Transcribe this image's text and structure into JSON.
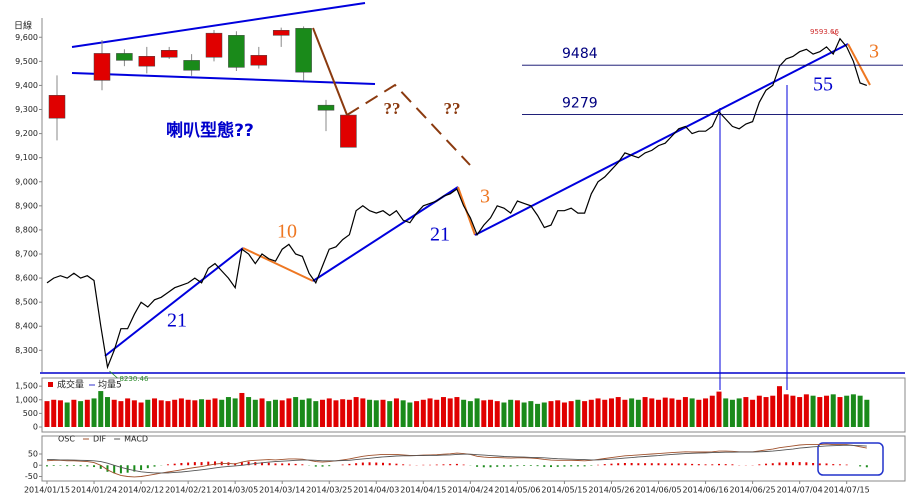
{
  "chart_data": [
    {
      "type": "line",
      "title": "日線",
      "color": "#000000",
      "ylim": [
        8210,
        9680
      ],
      "yticks": [
        {
          "value": 8300,
          "label": "8,300"
        },
        {
          "value": 8400,
          "label": "8,400"
        },
        {
          "value": 8500,
          "label": "8,500"
        },
        {
          "value": 8600,
          "label": "8,600"
        },
        {
          "value": 8700,
          "label": "8,700"
        },
        {
          "value": 8800,
          "label": "8,800"
        },
        {
          "value": 8900,
          "label": "8,900"
        },
        {
          "value": 9000,
          "label": "9,000"
        },
        {
          "value": 9100,
          "label": "9,100"
        },
        {
          "value": 9200,
          "label": "9,200"
        },
        {
          "value": 9300,
          "label": "9,300"
        },
        {
          "value": 9400,
          "label": "9,400"
        },
        {
          "value": 9500,
          "label": "9,500"
        },
        {
          "value": 9600,
          "label": "9,600"
        }
      ],
      "categories": [
        "2014/01/15",
        null,
        null,
        null,
        null,
        null,
        null,
        "2014/01/24",
        null,
        null,
        null,
        null,
        null,
        null,
        "2014/02/12",
        null,
        null,
        null,
        null,
        null,
        null,
        "2014/02/21",
        null,
        null,
        null,
        null,
        null,
        null,
        "2014/03/05",
        null,
        null,
        null,
        null,
        null,
        null,
        "2014/03/14",
        null,
        null,
        null,
        null,
        null,
        null,
        "2014/03/25",
        null,
        null,
        null,
        null,
        null,
        null,
        "2014/04/03",
        null,
        null,
        null,
        null,
        null,
        null,
        "2014/04/15",
        null,
        null,
        null,
        null,
        null,
        null,
        "2014/04/24",
        null,
        null,
        null,
        null,
        null,
        null,
        "2014/05/06",
        null,
        null,
        null,
        null,
        null,
        null,
        "2014/05/15",
        null,
        null,
        null,
        null,
        null,
        null,
        "2014/05/26",
        null,
        null,
        null,
        null,
        null,
        null,
        "2014/06/05",
        null,
        null,
        null,
        null,
        null,
        null,
        "2014/06/16",
        null,
        null,
        null,
        null,
        null,
        null,
        "2014/06/25",
        null,
        null,
        null,
        null,
        null,
        null,
        "2014/07/04",
        null,
        null,
        null,
        null,
        null,
        null,
        "2014/07/15",
        null,
        null,
        null
      ],
      "values": [
        8580,
        8600,
        8610,
        8600,
        8620,
        8600,
        8610,
        8590,
        8400,
        8230.46,
        8300,
        8390,
        8390,
        8450,
        8500,
        8480,
        8510,
        8520,
        8540,
        8560,
        8570,
        8580,
        8600,
        8580,
        8640,
        8660,
        8630,
        8600,
        8560,
        8720,
        8700,
        8660,
        8700,
        8680,
        8670,
        8720,
        8740,
        8700,
        8690,
        8620,
        8580,
        8650,
        8720,
        8730,
        8760,
        8780,
        8880,
        8900,
        8880,
        8870,
        8880,
        8860,
        8880,
        8840,
        8830,
        8870,
        8900,
        8910,
        8920,
        8940,
        8950,
        8970,
        8900,
        8850,
        8780,
        8820,
        8850,
        8900,
        8890,
        8870,
        8920,
        8910,
        8900,
        8860,
        8810,
        8820,
        8880,
        8880,
        8890,
        8870,
        8870,
        8950,
        9000,
        9020,
        9050,
        9080,
        9120,
        9110,
        9100,
        9120,
        9130,
        9150,
        9160,
        9190,
        9220,
        9230,
        9200,
        9210,
        9210,
        9230,
        9290,
        9260,
        9230,
        9220,
        9240,
        9250,
        9330,
        9380,
        9400,
        9480,
        9510,
        9520,
        9540,
        9550,
        9530,
        9540,
        9560,
        9530,
        9593.66,
        9560,
        9500,
        9410,
        9400
      ],
      "value_labels": [
        null,
        null,
        null,
        null,
        null,
        null,
        null,
        null,
        null,
        "8230.46",
        null,
        null,
        null,
        null,
        null,
        null,
        null,
        null,
        null,
        null,
        null,
        null,
        null,
        null,
        null,
        null,
        null,
        null,
        null,
        null,
        null,
        null,
        null,
        null,
        null,
        null,
        null,
        null,
        null,
        null,
        null,
        null,
        null,
        null,
        null,
        null,
        null,
        null,
        null,
        null,
        null,
        null,
        null,
        null,
        null,
        null,
        null,
        null,
        null,
        null,
        null,
        null,
        null,
        null,
        null,
        null,
        null,
        null,
        null,
        null,
        null,
        null,
        null,
        null,
        null,
        null,
        null,
        null,
        null,
        null,
        null,
        null,
        null,
        null,
        null,
        null,
        null,
        null,
        null,
        null,
        null,
        null,
        null,
        null,
        null,
        null,
        null,
        null,
        null,
        null,
        null,
        null,
        null,
        null,
        null,
        null,
        null,
        null,
        null,
        null,
        null,
        null,
        null,
        null,
        null,
        null,
        null,
        null,
        "9593.66",
        null,
        null,
        null,
        null
      ],
      "hlines": [
        9484,
        9279
      ],
      "annotations": [
        "喇叭型態??",
        "??",
        "??",
        "21",
        "10",
        "21",
        "3",
        "55",
        "3"
      ],
      "candles": {
        "up_color": "#e00000",
        "down_color": "#1a8a1a",
        "open": [
          9264,
          9421,
          9533,
          9480,
          9517,
          9504,
          9517,
          9608,
          9484,
          9608,
          9637,
          9318,
          9143
        ],
        "close": [
          9359,
          9533,
          9504,
          9521,
          9546,
          9463,
          9617,
          9475,
          9525,
          9629,
          9455,
          9297,
          9277
        ],
        "high": [
          9442,
          9588,
          9550,
          9560,
          9560,
          9530,
          9630,
          9625,
          9560,
          9640,
          9645,
          9340,
          9277
        ],
        "low": [
          9172,
          9380,
          9480,
          9450,
          9510,
          9440,
          9500,
          9460,
          9470,
          9560,
          9420,
          9210,
          9143
        ]
      }
    },
    {
      "type": "bar",
      "ylim": [
        0,
        1800
      ],
      "yticks": [
        0,
        500,
        {
          "value": 1000,
          "label": "1,000"
        },
        {
          "value": 1500,
          "label": "1,500"
        }
      ],
      "series": [
        {
          "name": "成交量",
          "up_color": "#e00000",
          "down_color": "#1a8a1a",
          "values": [
            950,
            1000,
            980,
            900,
            1000,
            950,
            1000,
            1050,
            1320,
            1100,
            1000,
            950,
            1050,
            980,
            900,
            1000,
            1050,
            980,
            950,
            1000,
            1050,
            1000,
            980,
            1020,
            1000,
            1050,
            1000,
            1100,
            1050,
            1250,
            1100,
            1000,
            1050,
            950,
            1000,
            980,
            1050,
            1100,
            1000,
            1050,
            950,
            1000,
            1050,
            980,
            1020,
            1000,
            1100,
            1050,
            1000,
            980,
            1000,
            950,
            1050,
            980,
            900,
            950,
            1000,
            1050,
            1000,
            1100,
            1050,
            1100,
            1000,
            950,
            1050,
            980,
            1000,
            950,
            900,
            1000,
            980,
            900,
            950,
            850,
            900,
            950,
            980,
            900,
            950,
            1000,
            950,
            1000,
            1050,
            1000,
            1050,
            1100,
            1000,
            1050,
            1000,
            1100,
            1050,
            1000,
            1080,
            1050,
            1000,
            1100,
            1050,
            1000,
            1050,
            1150,
            1300,
            1050,
            1000,
            1050,
            1100,
            1000,
            1150,
            1100,
            1150,
            1500,
            1200,
            1150,
            1100,
            1200,
            1150,
            1100,
            1150,
            1200,
            1100,
            1150,
            1200,
            1150,
            1000
          ]
        },
        {
          "name": "均量5",
          "color": "#3333cc"
        }
      ]
    },
    {
      "type": "macd",
      "ylim": [
        -70,
        130
      ],
      "yticks": [
        -50,
        0,
        50
      ],
      "series": [
        {
          "name": "OSC",
          "up_color": "#e00000",
          "down_color": "#1a8a1a",
          "values": [
            -5,
            -3,
            -2,
            -4,
            -3,
            -4,
            -5,
            -8,
            -16,
            -29,
            -35,
            -36,
            -33,
            -28,
            -21,
            -13,
            -6,
            -1,
            4,
            7,
            10,
            12,
            14,
            14,
            16,
            17,
            16,
            13,
            9,
            14,
            16,
            14,
            13,
            11,
            8,
            8,
            8,
            6,
            4,
            -1,
            -6,
            -6,
            -4,
            0,
            3,
            6,
            9,
            12,
            13,
            12,
            11,
            9,
            7,
            4,
            2,
            1,
            2,
            2,
            3,
            4,
            5,
            6,
            3,
            -1,
            -7,
            -9,
            -9,
            -7,
            -6,
            -6,
            -4,
            -3,
            -3,
            -4,
            -7,
            -8,
            -7,
            -6,
            -5,
            -5,
            -5,
            -2,
            2,
            5,
            7,
            9,
            10,
            10,
            9,
            9,
            9,
            9,
            8,
            8,
            8,
            8,
            6,
            5,
            4,
            4,
            6,
            5,
            4,
            1,
            1,
            1,
            4,
            7,
            9,
            12,
            13,
            14,
            14,
            13,
            10,
            8,
            8,
            5,
            4,
            3,
            0,
            -5,
            -9
          ]
        },
        {
          "name": "DIF",
          "color": "#a0522d",
          "values": [
            20,
            22,
            22,
            20,
            20,
            18,
            16,
            12,
            0,
            -20,
            -35,
            -45,
            -50,
            -52,
            -50,
            -45,
            -40,
            -35,
            -30,
            -25,
            -20,
            -15,
            -10,
            -6,
            0,
            5,
            8,
            8,
            6,
            14,
            20,
            22,
            24,
            25,
            24,
            26,
            28,
            28,
            27,
            22,
            16,
            14,
            16,
            20,
            24,
            28,
            34,
            40,
            44,
            46,
            48,
            48,
            48,
            46,
            44,
            44,
            45,
            46,
            47,
            49,
            51,
            54,
            52,
            48,
            40,
            36,
            34,
            34,
            33,
            32,
            33,
            33,
            32,
            30,
            26,
            23,
            22,
            22,
            22,
            21,
            20,
            22,
            26,
            30,
            34,
            38,
            42,
            44,
            46,
            48,
            50,
            52,
            54,
            56,
            58,
            60,
            59,
            59,
            59,
            60,
            63,
            63,
            62,
            60,
            60,
            60,
            64,
            68,
            72,
            78,
            82,
            86,
            90,
            92,
            92,
            92,
            94,
            92,
            92,
            92,
            88,
            82,
            76
          ]
        },
        {
          "name": "MACD",
          "color": "#555555",
          "values": [
            25,
            25,
            24,
            24,
            23,
            22,
            21,
            20,
            16,
            9,
            0,
            -9,
            -17,
            -24,
            -29,
            -32,
            -34,
            -34,
            -34,
            -32,
            -30,
            -27,
            -24,
            -20,
            -16,
            -12,
            -8,
            -5,
            -3,
            0,
            4,
            8,
            11,
            14,
            16,
            18,
            20,
            22,
            23,
            23,
            22,
            20,
            20,
            20,
            21,
            22,
            25,
            28,
            31,
            34,
            37,
            39,
            41,
            42,
            42,
            43,
            43,
            44,
            44,
            45,
            46,
            48,
            49,
            49,
            47,
            45,
            43,
            41,
            39,
            38,
            37,
            36,
            35,
            34,
            33,
            31,
            29,
            28,
            27,
            26,
            25,
            24,
            24,
            25,
            27,
            29,
            32,
            34,
            37,
            39,
            41,
            43,
            46,
            48,
            50,
            52,
            53,
            54,
            55,
            56,
            57,
            58,
            58,
            59,
            59,
            59,
            60,
            61,
            63,
            66,
            69,
            72,
            76,
            79,
            82,
            84,
            86,
            87,
            88,
            89,
            88,
            87,
            85
          ]
        }
      ]
    }
  ]
}
